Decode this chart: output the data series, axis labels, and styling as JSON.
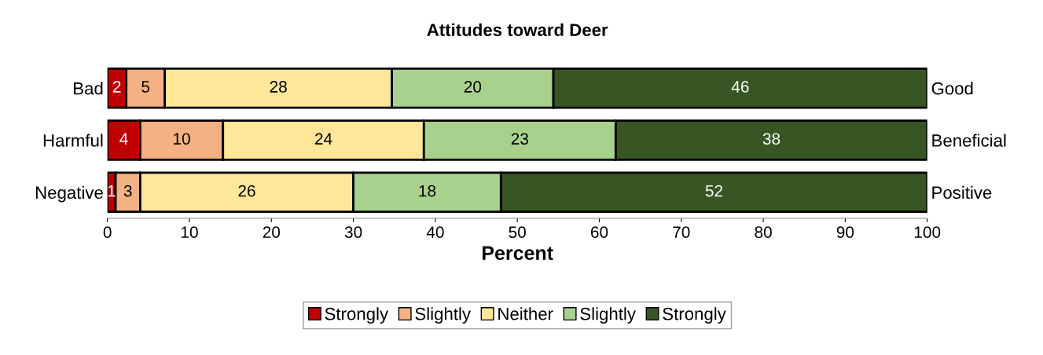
{
  "chart_data": {
    "type": "bar",
    "orientation": "horizontal",
    "stacked": true,
    "title": "Attitudes toward Deer",
    "xlabel": "Percent",
    "categories": [
      "Bad",
      "Harmful",
      "Negative"
    ],
    "y2_categories": [
      "Good",
      "Beneficial",
      "Positive"
    ],
    "series": [
      {
        "name": "Strongly",
        "color": "#c00000",
        "values": [
          2.3,
          4,
          1
        ],
        "value_labels": [
          "2",
          "4",
          "1"
        ]
      },
      {
        "name": "Slightly",
        "color": "#f4b183",
        "values": [
          4.7,
          10.1,
          3
        ],
        "value_labels": [
          "5",
          "10",
          "3"
        ]
      },
      {
        "name": "Neither",
        "color": "#ffe699",
        "values": [
          27.7,
          24.5,
          26
        ],
        "value_labels": [
          "28",
          "24",
          "26"
        ]
      },
      {
        "name": "Slightly",
        "color": "#a9d18e",
        "values": [
          19.7,
          23.4,
          18
        ],
        "value_labels": [
          "20",
          "23",
          "18"
        ]
      },
      {
        "name": "Strongly",
        "color": "#375623",
        "values": [
          45.6,
          38,
          52
        ],
        "value_labels": [
          "46",
          "38",
          "52"
        ]
      }
    ],
    "xlim": [
      0,
      100
    ],
    "xticks": [
      0,
      10,
      20,
      30,
      40,
      50,
      60,
      70,
      80,
      90,
      100
    ],
    "grid": false,
    "legend": "bottom"
  }
}
